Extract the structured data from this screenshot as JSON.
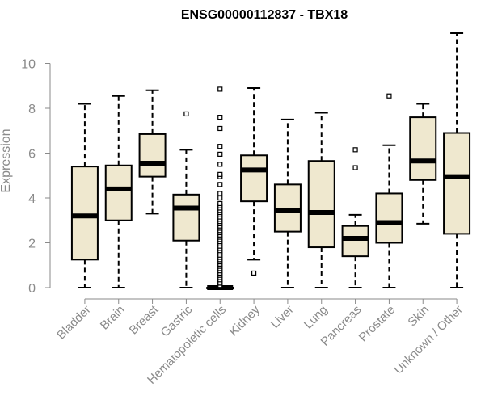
{
  "chart_data": {
    "type": "box",
    "title": "ENSG00000112837 - TBX18",
    "xlabel": "",
    "ylabel": "Expression",
    "ylim": [
      0,
      11.5
    ],
    "y_ticks": [
      0,
      2,
      4,
      6,
      8,
      10
    ],
    "grid": false,
    "colors": {
      "box_fill": "#efe8cf",
      "box_stroke": "#000000",
      "axis": "#8a8a8a",
      "text": "#8a8a8a",
      "title": "#000000"
    },
    "categories": [
      "Bladder",
      "Brain",
      "Breast",
      "Gastric",
      "Hematopoietic cells",
      "Kidney",
      "Liver",
      "Lung",
      "Pancreas",
      "Prostate",
      "Skin",
      "Unknown / Other"
    ],
    "series": [
      {
        "category": "Bladder",
        "whisker_low": 0.0,
        "q1": 1.25,
        "median": 3.2,
        "q3": 5.4,
        "whisker_high": 8.2,
        "outliers": []
      },
      {
        "category": "Brain",
        "whisker_low": 0.0,
        "q1": 3.0,
        "median": 4.4,
        "q3": 5.45,
        "whisker_high": 8.55,
        "outliers": []
      },
      {
        "category": "Breast",
        "whisker_low": 3.3,
        "q1": 4.95,
        "median": 5.55,
        "q3": 6.85,
        "whisker_high": 8.8,
        "outliers": []
      },
      {
        "category": "Gastric",
        "whisker_low": 0.0,
        "q1": 2.1,
        "median": 3.55,
        "q3": 4.15,
        "whisker_high": 6.15,
        "outliers": [
          7.75
        ]
      },
      {
        "category": "Hematopoietic cells",
        "whisker_low": 0.0,
        "q1": 0.0,
        "median": 0.0,
        "q3": 0.0,
        "whisker_high": 0.0,
        "outliers": [
          0.1,
          0.2,
          0.25,
          0.35,
          0.45,
          0.55,
          0.65,
          0.75,
          0.85,
          0.95,
          1.05,
          1.15,
          1.25,
          1.35,
          1.45,
          1.55,
          1.65,
          1.75,
          1.85,
          1.95,
          2.05,
          2.15,
          2.25,
          2.35,
          2.45,
          2.55,
          2.65,
          2.75,
          2.85,
          2.95,
          3.05,
          3.15,
          3.25,
          3.35,
          3.45,
          3.55,
          3.65,
          3.75,
          4.0,
          4.2,
          4.6,
          4.95,
          5.05,
          5.5,
          5.95,
          6.3,
          7.1,
          7.6,
          8.85
        ]
      },
      {
        "category": "Kidney",
        "whisker_low": 1.25,
        "q1": 3.85,
        "median": 5.25,
        "q3": 5.9,
        "whisker_high": 8.9,
        "outliers": [
          0.65
        ]
      },
      {
        "category": "Liver",
        "whisker_low": 0.0,
        "q1": 2.5,
        "median": 3.45,
        "q3": 4.6,
        "whisker_high": 7.5,
        "outliers": []
      },
      {
        "category": "Lung",
        "whisker_low": 0.0,
        "q1": 1.8,
        "median": 3.35,
        "q3": 5.65,
        "whisker_high": 7.8,
        "outliers": []
      },
      {
        "category": "Pancreas",
        "whisker_low": 0.0,
        "q1": 1.4,
        "median": 2.2,
        "q3": 2.75,
        "whisker_high": 3.25,
        "outliers": [
          5.35,
          6.15
        ]
      },
      {
        "category": "Prostate",
        "whisker_low": 0.0,
        "q1": 2.0,
        "median": 2.9,
        "q3": 4.2,
        "whisker_high": 6.35,
        "outliers": [
          8.55
        ]
      },
      {
        "category": "Skin",
        "whisker_low": 2.85,
        "q1": 4.8,
        "median": 5.65,
        "q3": 7.6,
        "whisker_high": 8.2,
        "outliers": []
      },
      {
        "category": "Unknown / Other",
        "whisker_low": 0.0,
        "q1": 2.4,
        "median": 4.95,
        "q3": 6.9,
        "whisker_high": 11.35,
        "outliers": []
      }
    ]
  }
}
